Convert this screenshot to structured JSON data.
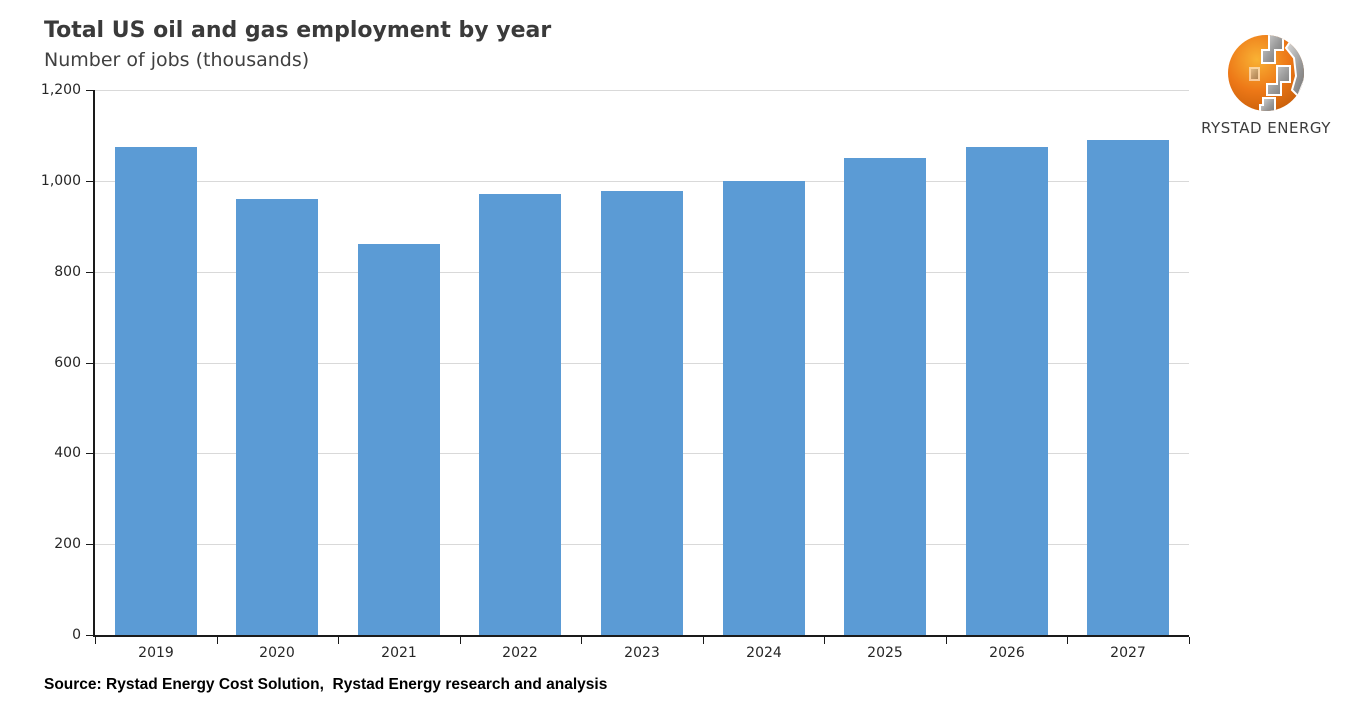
{
  "title": "Total US oil and gas employment by year",
  "subtitle": "Number of jobs (thousands)",
  "source": "Source: Rystad Energy Cost Solution,  Rystad Energy research and analysis",
  "logo": {
    "text": "RYSTAD ENERGY",
    "orange": "#ED7817",
    "gray": "#8c8c8c"
  },
  "chart_data": {
    "type": "bar",
    "title": "Total US oil and gas employment by year",
    "subtitle": "Number of jobs (thousands)",
    "categories": [
      "2019",
      "2020",
      "2021",
      "2022",
      "2023",
      "2024",
      "2025",
      "2026",
      "2027"
    ],
    "values": [
      1075,
      960,
      860,
      970,
      978,
      1000,
      1050,
      1075,
      1090
    ],
    "xlabel": "",
    "ylabel": "Number of jobs (thousands)",
    "ylim": [
      0,
      1200
    ],
    "ytick_step": 200,
    "grid": true,
    "legend": false,
    "bar_color": "#5B9BD5",
    "gridline_color": "#d9d9d9",
    "axis_color": "#1a1a1a"
  }
}
